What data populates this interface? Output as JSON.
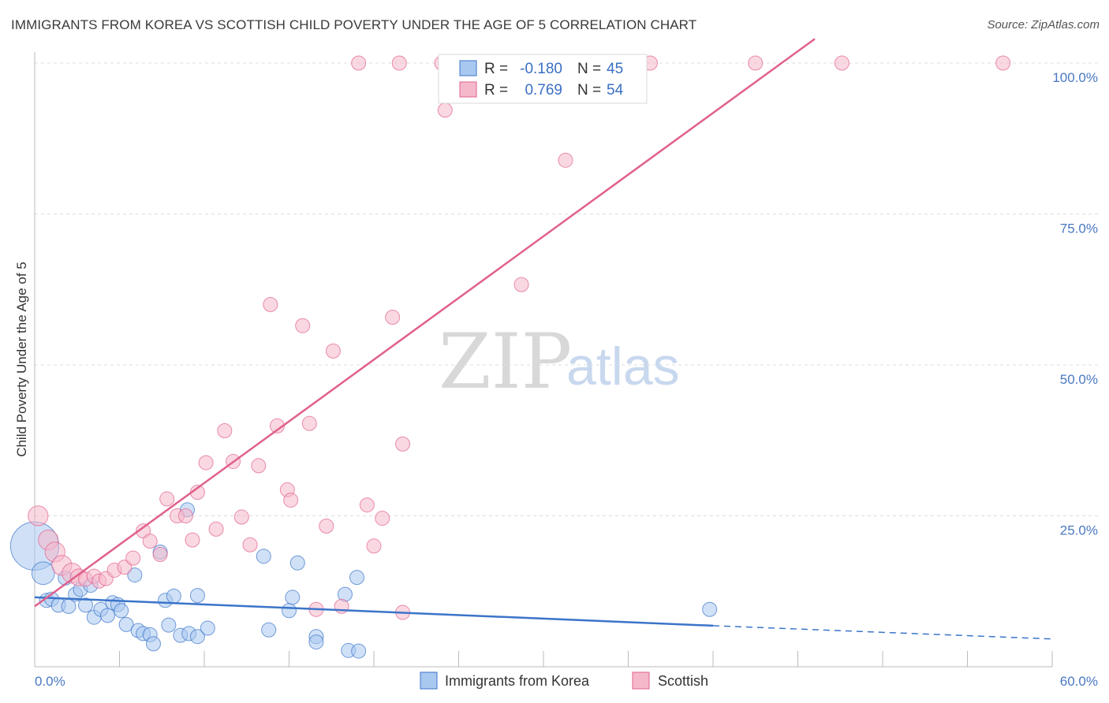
{
  "title": "IMMIGRANTS FROM KOREA VS SCOTTISH CHILD POVERTY UNDER THE AGE OF 5 CORRELATION CHART",
  "source": "Source: ZipAtlas.com",
  "watermark": {
    "zip": "ZIP",
    "atlas": "atlas"
  },
  "colors": {
    "blue": "#3b74c9",
    "blue_fill": "#a9c8f0",
    "pink": "#e0608c",
    "pink_fill": "#f5b8cb"
  },
  "legend": {
    "r_label": "R =",
    "n_label": "N =",
    "rows": [
      {
        "r": "-0.180",
        "n": "45"
      },
      {
        "r": "0.769",
        "n": "54"
      }
    ]
  },
  "chart_data": {
    "type": "scatter",
    "title": "IMMIGRANTS FROM KOREA VS SCOTTISH CHILD POVERTY UNDER THE AGE OF 5 CORRELATION CHART",
    "xlabel": "",
    "ylabel": "Child Poverty Under the Age of 5",
    "xlim": [
      0,
      60
    ],
    "ylim": [
      0,
      100
    ],
    "x_tick_labels": [
      "0.0%",
      "60.0%"
    ],
    "y_ticks": [
      25,
      50,
      75,
      100
    ],
    "y_tick_labels": [
      "25.0%",
      "50.0%",
      "75.0%",
      "100.0%"
    ],
    "series": [
      {
        "name": "Immigrants from Korea",
        "color": "#3b74c9",
        "trend": {
          "x0": 0,
          "y0": 11.5,
          "x1": 40,
          "y1": 6.8,
          "dash_to_x": 60,
          "dash_to_y": 4.6
        },
        "points": [
          [
            0.0,
            20.0,
            3.4
          ],
          [
            0.5,
            15.5,
            1.6
          ],
          [
            0.7,
            11.0,
            1.0
          ],
          [
            1.0,
            11.2,
            1.0
          ],
          [
            1.4,
            10.2,
            1.0
          ],
          [
            1.8,
            14.7,
            1.0
          ],
          [
            2.0,
            10.0,
            1.0
          ],
          [
            2.4,
            12.0,
            1.0
          ],
          [
            2.7,
            12.8,
            1.0
          ],
          [
            3.0,
            10.2,
            1.0
          ],
          [
            3.3,
            13.5,
            1.0
          ],
          [
            3.5,
            8.2,
            1.0
          ],
          [
            3.9,
            9.5,
            1.0
          ],
          [
            4.3,
            8.5,
            1.0
          ],
          [
            4.6,
            10.6,
            1.0
          ],
          [
            4.9,
            10.3,
            1.0
          ],
          [
            5.1,
            9.3,
            1.0
          ],
          [
            5.4,
            7.0,
            1.0
          ],
          [
            5.9,
            15.2,
            1.0
          ],
          [
            6.1,
            6.0,
            1.0
          ],
          [
            6.4,
            5.5,
            1.0
          ],
          [
            6.8,
            5.3,
            1.0
          ],
          [
            7.0,
            3.8,
            1.0
          ],
          [
            7.4,
            19.0,
            1.0
          ],
          [
            7.7,
            11.0,
            1.0
          ],
          [
            7.9,
            6.9,
            1.0
          ],
          [
            8.2,
            11.7,
            1.0
          ],
          [
            8.6,
            5.2,
            1.0
          ],
          [
            9.1,
            5.5,
            1.0
          ],
          [
            9.0,
            26.0,
            1.0
          ],
          [
            9.6,
            5.0,
            1.0
          ],
          [
            9.6,
            11.8,
            1.0
          ],
          [
            10.2,
            6.4,
            1.0
          ],
          [
            13.5,
            18.3,
            1.0
          ],
          [
            13.8,
            6.1,
            1.0
          ],
          [
            15.0,
            9.3,
            1.0
          ],
          [
            15.2,
            11.5,
            1.0
          ],
          [
            15.5,
            17.2,
            1.0
          ],
          [
            16.6,
            5.0,
            1.0
          ],
          [
            16.6,
            4.1,
            1.0
          ],
          [
            18.3,
            12.0,
            1.0
          ],
          [
            18.5,
            2.7,
            1.0
          ],
          [
            19.0,
            14.8,
            1.0
          ],
          [
            19.1,
            2.6,
            1.0
          ],
          [
            39.8,
            9.5,
            1.0
          ]
        ]
      },
      {
        "name": "Scottish",
        "color": "#e0608c",
        "trend": {
          "x0": 0,
          "y0": 10.0,
          "x1": 46,
          "y1": 104.0
        },
        "points": [
          [
            0.2,
            25.0,
            1.4
          ],
          [
            0.8,
            21.0,
            1.4
          ],
          [
            1.2,
            19.0,
            1.4
          ],
          [
            1.6,
            16.8,
            1.4
          ],
          [
            2.2,
            15.5,
            1.4
          ],
          [
            2.6,
            14.8,
            1.2
          ],
          [
            3.0,
            14.5,
            1.0
          ],
          [
            3.5,
            15.0,
            1.0
          ],
          [
            3.8,
            14.2,
            1.0
          ],
          [
            4.2,
            14.6,
            1.0
          ],
          [
            4.7,
            16.0,
            1.0
          ],
          [
            5.3,
            16.5,
            1.0
          ],
          [
            5.8,
            18.0,
            1.0
          ],
          [
            6.4,
            22.5,
            1.0
          ],
          [
            6.8,
            20.8,
            1.0
          ],
          [
            7.4,
            18.6,
            1.0
          ],
          [
            7.8,
            27.8,
            1.0
          ],
          [
            8.4,
            25.0,
            1.0
          ],
          [
            8.9,
            25.0,
            1.0
          ],
          [
            9.3,
            21.0,
            1.0
          ],
          [
            9.6,
            28.9,
            1.0
          ],
          [
            10.1,
            33.8,
            1.0
          ],
          [
            10.7,
            22.8,
            1.0
          ],
          [
            11.2,
            39.1,
            1.0
          ],
          [
            11.7,
            34.0,
            1.0
          ],
          [
            12.2,
            24.8,
            1.0
          ],
          [
            12.7,
            20.2,
            1.0
          ],
          [
            13.2,
            33.3,
            1.0
          ],
          [
            13.9,
            60.0,
            1.0
          ],
          [
            14.3,
            39.9,
            1.0
          ],
          [
            14.9,
            29.3,
            1.0
          ],
          [
            15.1,
            27.6,
            1.0
          ],
          [
            15.8,
            56.5,
            1.0
          ],
          [
            16.2,
            40.3,
            1.0
          ],
          [
            16.6,
            9.5,
            1.0
          ],
          [
            17.2,
            23.3,
            1.0
          ],
          [
            17.6,
            52.3,
            1.0
          ],
          [
            18.1,
            10.0,
            1.0
          ],
          [
            19.1,
            100.0,
            1.0
          ],
          [
            19.6,
            26.8,
            1.0
          ],
          [
            20.0,
            20.0,
            1.0
          ],
          [
            20.5,
            24.6,
            1.0
          ],
          [
            21.1,
            57.9,
            1.0
          ],
          [
            21.5,
            100.0,
            1.0
          ],
          [
            21.7,
            9.0,
            1.0
          ],
          [
            21.7,
            36.9,
            1.0
          ],
          [
            24.0,
            100.0,
            1.0
          ],
          [
            24.2,
            92.2,
            1.0
          ],
          [
            28.7,
            63.3,
            1.0
          ],
          [
            31.3,
            83.9,
            1.0
          ],
          [
            36.3,
            100.0,
            1.0
          ],
          [
            42.5,
            100.0,
            1.0
          ],
          [
            47.6,
            100.0,
            1.0
          ],
          [
            57.1,
            100.0,
            1.0
          ]
        ]
      }
    ]
  }
}
